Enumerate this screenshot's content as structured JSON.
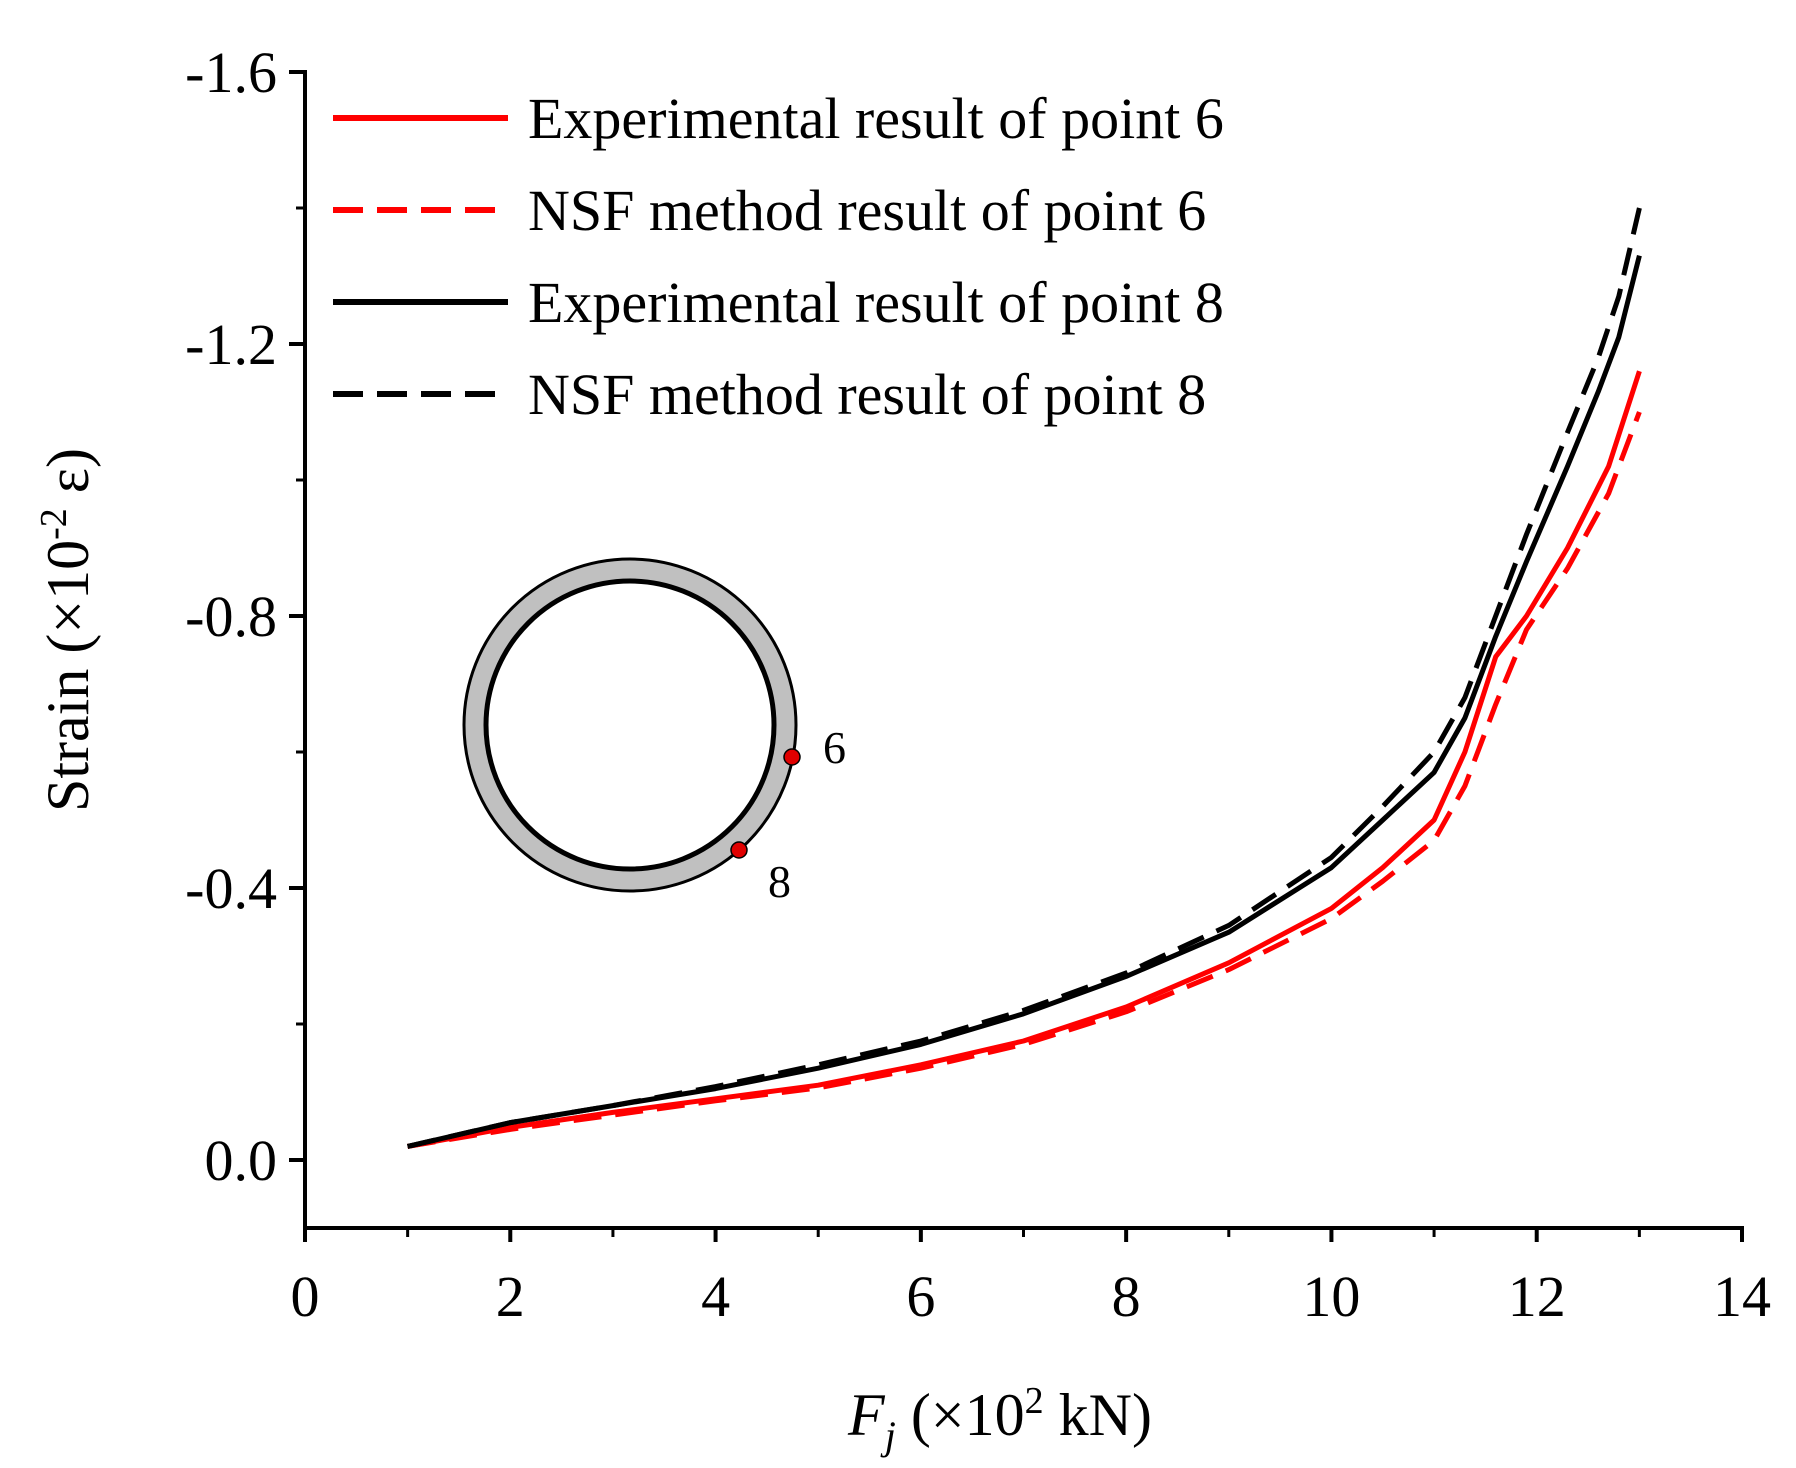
{
  "chart_data": {
    "type": "line",
    "title": "",
    "xlabel": {
      "var": "F",
      "sub": "j",
      "unit_pre": " (×10",
      "unit_sup": "2",
      "unit_post": " kN)"
    },
    "ylabel": {
      "pre": "Strain (×10",
      "sup": "-2",
      "post": " ε)"
    },
    "xlim": [
      0,
      14
    ],
    "ylim": [
      0.1,
      -1.6
    ],
    "xticks": [
      0,
      2,
      4,
      6,
      8,
      10,
      12,
      14
    ],
    "xtick_labels": [
      "0",
      "2",
      "4",
      "6",
      "8",
      "10",
      "12",
      "14"
    ],
    "yticks": [
      0.0,
      -0.4,
      -0.8,
      -1.2,
      -1.6
    ],
    "ytick_labels": [
      "0.0",
      "-0.4",
      "-0.8",
      "-1.2",
      "-1.6"
    ],
    "legend_position": "top-left",
    "series": [
      {
        "name": "Experimental result of point 6",
        "color": "#ff0000",
        "dash": "solid",
        "x": [
          1,
          2,
          3,
          4,
          5,
          6,
          7,
          8,
          9,
          10,
          10.5,
          11,
          11.3,
          11.6,
          11.9,
          12.3,
          12.7,
          13
        ],
        "y": [
          -0.02,
          -0.048,
          -0.07,
          -0.09,
          -0.11,
          -0.14,
          -0.175,
          -0.225,
          -0.29,
          -0.37,
          -0.43,
          -0.5,
          -0.6,
          -0.74,
          -0.8,
          -0.9,
          -1.02,
          -1.16
        ]
      },
      {
        "name": "NSF method result of point 6",
        "color": "#ff0000",
        "dash": "dashed",
        "x": [
          1,
          2,
          3,
          4,
          5,
          6,
          7,
          8,
          9,
          10,
          10.5,
          11,
          11.3,
          11.6,
          11.9,
          12.3,
          12.7,
          13
        ],
        "y": [
          -0.02,
          -0.045,
          -0.066,
          -0.087,
          -0.106,
          -0.135,
          -0.17,
          -0.218,
          -0.28,
          -0.355,
          -0.41,
          -0.47,
          -0.55,
          -0.67,
          -0.78,
          -0.87,
          -0.98,
          -1.1
        ]
      },
      {
        "name": "Experimental result of point 8",
        "color": "#000000",
        "dash": "solid",
        "x": [
          1,
          2,
          3,
          4,
          5,
          6,
          7,
          8,
          9,
          10,
          10.5,
          11,
          11.3,
          11.6,
          11.9,
          12.3,
          12.6,
          12.8,
          13
        ],
        "y": [
          -0.02,
          -0.055,
          -0.08,
          -0.105,
          -0.135,
          -0.17,
          -0.215,
          -0.27,
          -0.335,
          -0.43,
          -0.5,
          -0.57,
          -0.65,
          -0.77,
          -0.88,
          -1.02,
          -1.13,
          -1.21,
          -1.33
        ]
      },
      {
        "name": "NSF method result of point 8",
        "color": "#000000",
        "dash": "dashed",
        "x": [
          1,
          2,
          3,
          4,
          5,
          6,
          7,
          8,
          9,
          10,
          10.5,
          11,
          11.3,
          11.6,
          11.9,
          12.3,
          12.6,
          12.8,
          13
        ],
        "y": [
          -0.02,
          -0.055,
          -0.08,
          -0.108,
          -0.14,
          -0.175,
          -0.22,
          -0.275,
          -0.345,
          -0.445,
          -0.52,
          -0.6,
          -0.68,
          -0.8,
          -0.92,
          -1.07,
          -1.18,
          -1.27,
          -1.4
        ]
      }
    ],
    "inset": {
      "description_labels": [
        "6",
        "8"
      ],
      "marker_color": "#e00000",
      "ring_fill": "#c0c0c0"
    }
  }
}
